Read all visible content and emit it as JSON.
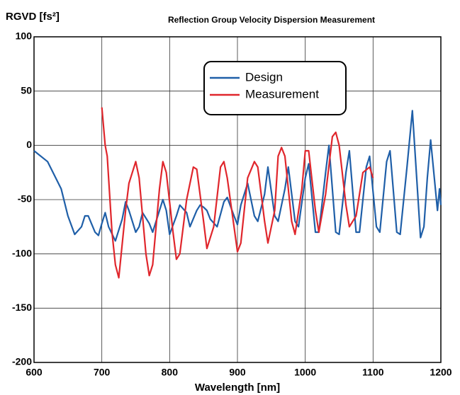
{
  "chart_data": {
    "type": "line",
    "title": "Reflection Group Velocity Dispersion Measurement",
    "y_label": "RGVD [fs²]",
    "x_label": "Wavelength [nm]",
    "xlim": [
      600,
      1200
    ],
    "xticks": [
      600,
      700,
      800,
      900,
      1000,
      1100,
      1200
    ],
    "ylim": [
      -200,
      100
    ],
    "yticks": [
      -200,
      -150,
      -100,
      -50,
      0,
      50,
      100
    ],
    "grid": true,
    "legend": "top",
    "series": [
      {
        "name": "Design",
        "color": "#1f5fa8",
        "x": [
          600,
          620,
          640,
          650,
          660,
          670,
          675,
          680,
          690,
          695,
          700,
          705,
          710,
          720,
          730,
          735,
          740,
          750,
          755,
          760,
          770,
          775,
          785,
          790,
          795,
          800,
          810,
          815,
          825,
          830,
          840,
          845,
          850,
          855,
          860,
          870,
          880,
          885,
          895,
          900,
          905,
          915,
          925,
          930,
          940,
          945,
          955,
          960,
          970,
          975,
          985,
          990,
          1000,
          1005,
          1015,
          1020,
          1030,
          1035,
          1045,
          1050,
          1060,
          1065,
          1075,
          1080,
          1090,
          1095,
          1105,
          1110,
          1120,
          1125,
          1135,
          1140,
          1150,
          1158,
          1170,
          1175,
          1180,
          1185,
          1195,
          1198,
          1200
        ],
        "values": [
          -5,
          -15,
          -40,
          -65,
          -82,
          -75,
          -65,
          -65,
          -80,
          -83,
          -72,
          -62,
          -75,
          -88,
          -68,
          -52,
          -60,
          -80,
          -75,
          -62,
          -72,
          -80,
          -60,
          -50,
          -60,
          -82,
          -65,
          -55,
          -62,
          -75,
          -60,
          -55,
          -57,
          -60,
          -68,
          -75,
          -52,
          -48,
          -65,
          -73,
          -55,
          -35,
          -65,
          -70,
          -45,
          -20,
          -65,
          -70,
          -40,
          -20,
          -70,
          -75,
          -30,
          -17,
          -80,
          -80,
          -25,
          0,
          -80,
          -82,
          -25,
          -5,
          -80,
          -80,
          -20,
          -10,
          -75,
          -80,
          -15,
          -5,
          -80,
          -82,
          -20,
          32,
          -85,
          -75,
          -30,
          5,
          -60,
          -40,
          -55
        ]
      },
      {
        "name": "Measurement",
        "color": "#e0262c",
        "x": [
          700,
          705,
          708,
          715,
          720,
          725,
          735,
          740,
          750,
          755,
          765,
          770,
          775,
          785,
          790,
          795,
          805,
          810,
          815,
          825,
          835,
          840,
          850,
          855,
          865,
          875,
          880,
          885,
          895,
          900,
          905,
          915,
          925,
          930,
          940,
          945,
          955,
          960,
          965,
          970,
          980,
          985,
          995,
          1000,
          1005,
          1015,
          1020,
          1030,
          1040,
          1045,
          1050,
          1060,
          1065,
          1075,
          1085,
          1095,
          1100
        ],
        "values": [
          35,
          0,
          -10,
          -80,
          -110,
          -122,
          -60,
          -35,
          -15,
          -30,
          -100,
          -120,
          -110,
          -40,
          -15,
          -25,
          -80,
          -105,
          -100,
          -50,
          -20,
          -22,
          -70,
          -95,
          -75,
          -20,
          -15,
          -30,
          -75,
          -98,
          -90,
          -30,
          -15,
          -20,
          -70,
          -90,
          -60,
          -10,
          -2,
          -10,
          -70,
          -82,
          -40,
          -5,
          -5,
          -60,
          -80,
          -45,
          8,
          12,
          0,
          -55,
          -75,
          -65,
          -25,
          -20,
          -30
        ]
      }
    ]
  }
}
